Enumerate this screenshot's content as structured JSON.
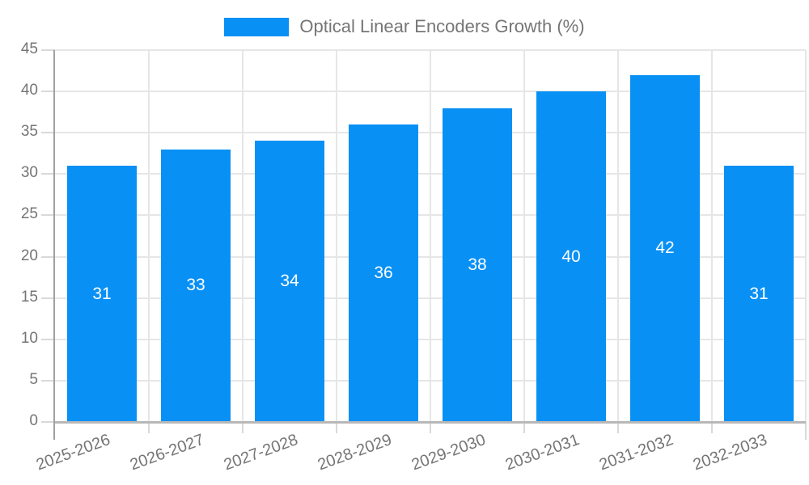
{
  "legend": {
    "label": "Optical Linear Encoders Growth (%)"
  },
  "colors": {
    "bar": "#0890f5",
    "grid": "#e6e6e6",
    "axis_line": "#a0a0a0",
    "baseline": "#b8b8b8",
    "tick": "#d9d9d9",
    "label_text": "#757575",
    "value_text": "#ffffff",
    "background": "#ffffff"
  },
  "chart_data": {
    "type": "bar",
    "title": "Optical Linear Encoders Growth (%)",
    "categories": [
      "2025-2026",
      "2026-2027",
      "2027-2028",
      "2028-2029",
      "2029-2030",
      "2030-2031",
      "2031-2032",
      "2032-2033"
    ],
    "values": [
      31,
      33,
      34,
      36,
      38,
      40,
      42,
      31
    ],
    "xlabel": "",
    "ylabel": "",
    "ylim": [
      0,
      45
    ],
    "ytick_step": 5,
    "grid": true,
    "legend_position": "top-center",
    "value_labels": "inside-center",
    "x_label_rotation_deg": -20
  }
}
